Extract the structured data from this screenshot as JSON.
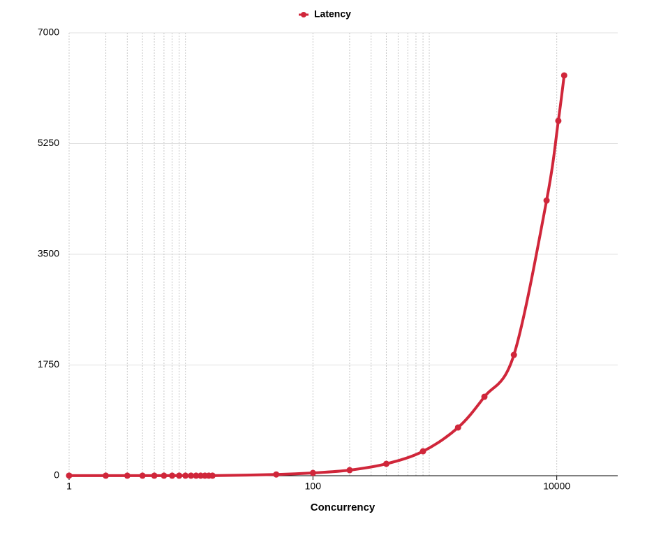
{
  "chart_data": {
    "type": "line",
    "x_label": "Concurrency",
    "x_scale": "log",
    "xlim": [
      1,
      31623
    ],
    "xticks": [
      1,
      100,
      10000
    ],
    "x_grid_lines": [
      1,
      2,
      3,
      4,
      5,
      6,
      7,
      8,
      9,
      100,
      200,
      300,
      400,
      500,
      600,
      700,
      800,
      900,
      10000
    ],
    "ylim": [
      0,
      7000
    ],
    "yticks": [
      0,
      1750,
      3500,
      5250,
      7000
    ],
    "grid": true,
    "legend": "top",
    "series": [
      {
        "name": "Latency",
        "color": "#d0263a",
        "x": [
          1,
          2,
          3,
          4,
          5,
          6,
          7,
          8,
          9,
          10,
          11,
          12,
          13,
          14,
          15,
          50,
          100,
          200,
          400,
          800,
          1550,
          2550,
          4450,
          8250,
          10300,
          11500
        ],
        "values": [
          2,
          1,
          1,
          1,
          1,
          1,
          1,
          1,
          1,
          1,
          1,
          1,
          1,
          1,
          1,
          20,
          44,
          88,
          188,
          386,
          762,
          1248,
          1910,
          4350,
          5609,
          6327
        ]
      }
    ]
  }
}
